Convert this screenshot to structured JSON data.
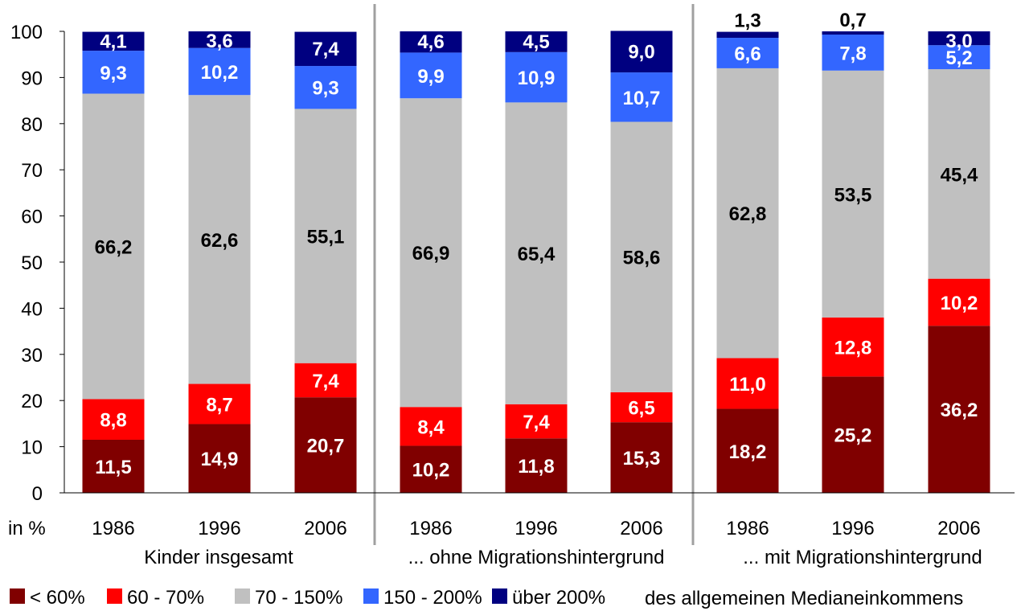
{
  "chart_data": {
    "type": "bar",
    "stacked": true,
    "unit_label": "in %",
    "ylim": [
      0,
      100
    ],
    "yticks": [
      0,
      10,
      20,
      30,
      40,
      50,
      60,
      70,
      80,
      90,
      100
    ],
    "grid": false,
    "legend_position": "bottom",
    "legend_suffix": "des allgemeinen Medianeinkommens",
    "groups": [
      {
        "label": "Kinder insgesamt",
        "categories": [
          "1986",
          "1996",
          "2006"
        ]
      },
      {
        "label": "... ohne Migrationshintergrund",
        "categories": [
          "1986",
          "1996",
          "2006"
        ]
      },
      {
        "label": "... mit Migrationshintergrund",
        "categories": [
          "1986",
          "1996",
          "2006"
        ]
      }
    ],
    "series": [
      {
        "name": "< 60%",
        "color": "#800000",
        "label_color": "#ffffff",
        "values": [
          11.5,
          14.9,
          20.7,
          10.2,
          11.8,
          15.3,
          18.2,
          25.2,
          36.2
        ],
        "labels": [
          "11,5",
          "14,9",
          "20,7",
          "10,2",
          "11,8",
          "15,3",
          "18,2",
          "25,2",
          "36,2"
        ]
      },
      {
        "name": "60 - 70%",
        "color": "#ff0000",
        "label_color": "#ffffff",
        "values": [
          8.8,
          8.7,
          7.4,
          8.4,
          7.4,
          6.5,
          11.0,
          12.8,
          10.2
        ],
        "labels": [
          "8,8",
          "8,7",
          "7,4",
          "8,4",
          "7,4",
          "6,5",
          "11,0",
          "12,8",
          "10,2"
        ]
      },
      {
        "name": "70 - 150%",
        "color": "#c0c0c0",
        "label_color": "#000000",
        "values": [
          66.2,
          62.6,
          55.1,
          66.9,
          65.4,
          58.6,
          62.8,
          53.5,
          45.4
        ],
        "labels": [
          "66,2",
          "62,6",
          "55,1",
          "66,9",
          "65,4",
          "58,6",
          "62,8",
          "53,5",
          "45,4"
        ]
      },
      {
        "name": "150 - 200%",
        "color": "#3366ff",
        "label_color": "#ffffff",
        "values": [
          9.3,
          10.2,
          9.3,
          9.9,
          10.9,
          10.7,
          6.6,
          7.8,
          5.2
        ],
        "labels": [
          "9,3",
          "10,2",
          "9,3",
          "9,9",
          "10,9",
          "10,7",
          "6,6",
          "7,8",
          "5,2"
        ]
      },
      {
        "name": "über 200%",
        "color": "#000080",
        "label_color": "#ffffff",
        "values": [
          4.1,
          3.6,
          7.4,
          4.6,
          4.5,
          9.0,
          1.3,
          0.7,
          3.0
        ],
        "labels": [
          "4,1",
          "3,6",
          "7,4",
          "4,6",
          "4,5",
          "9,0",
          "1,3",
          "0,7",
          "3,0"
        ]
      }
    ]
  }
}
